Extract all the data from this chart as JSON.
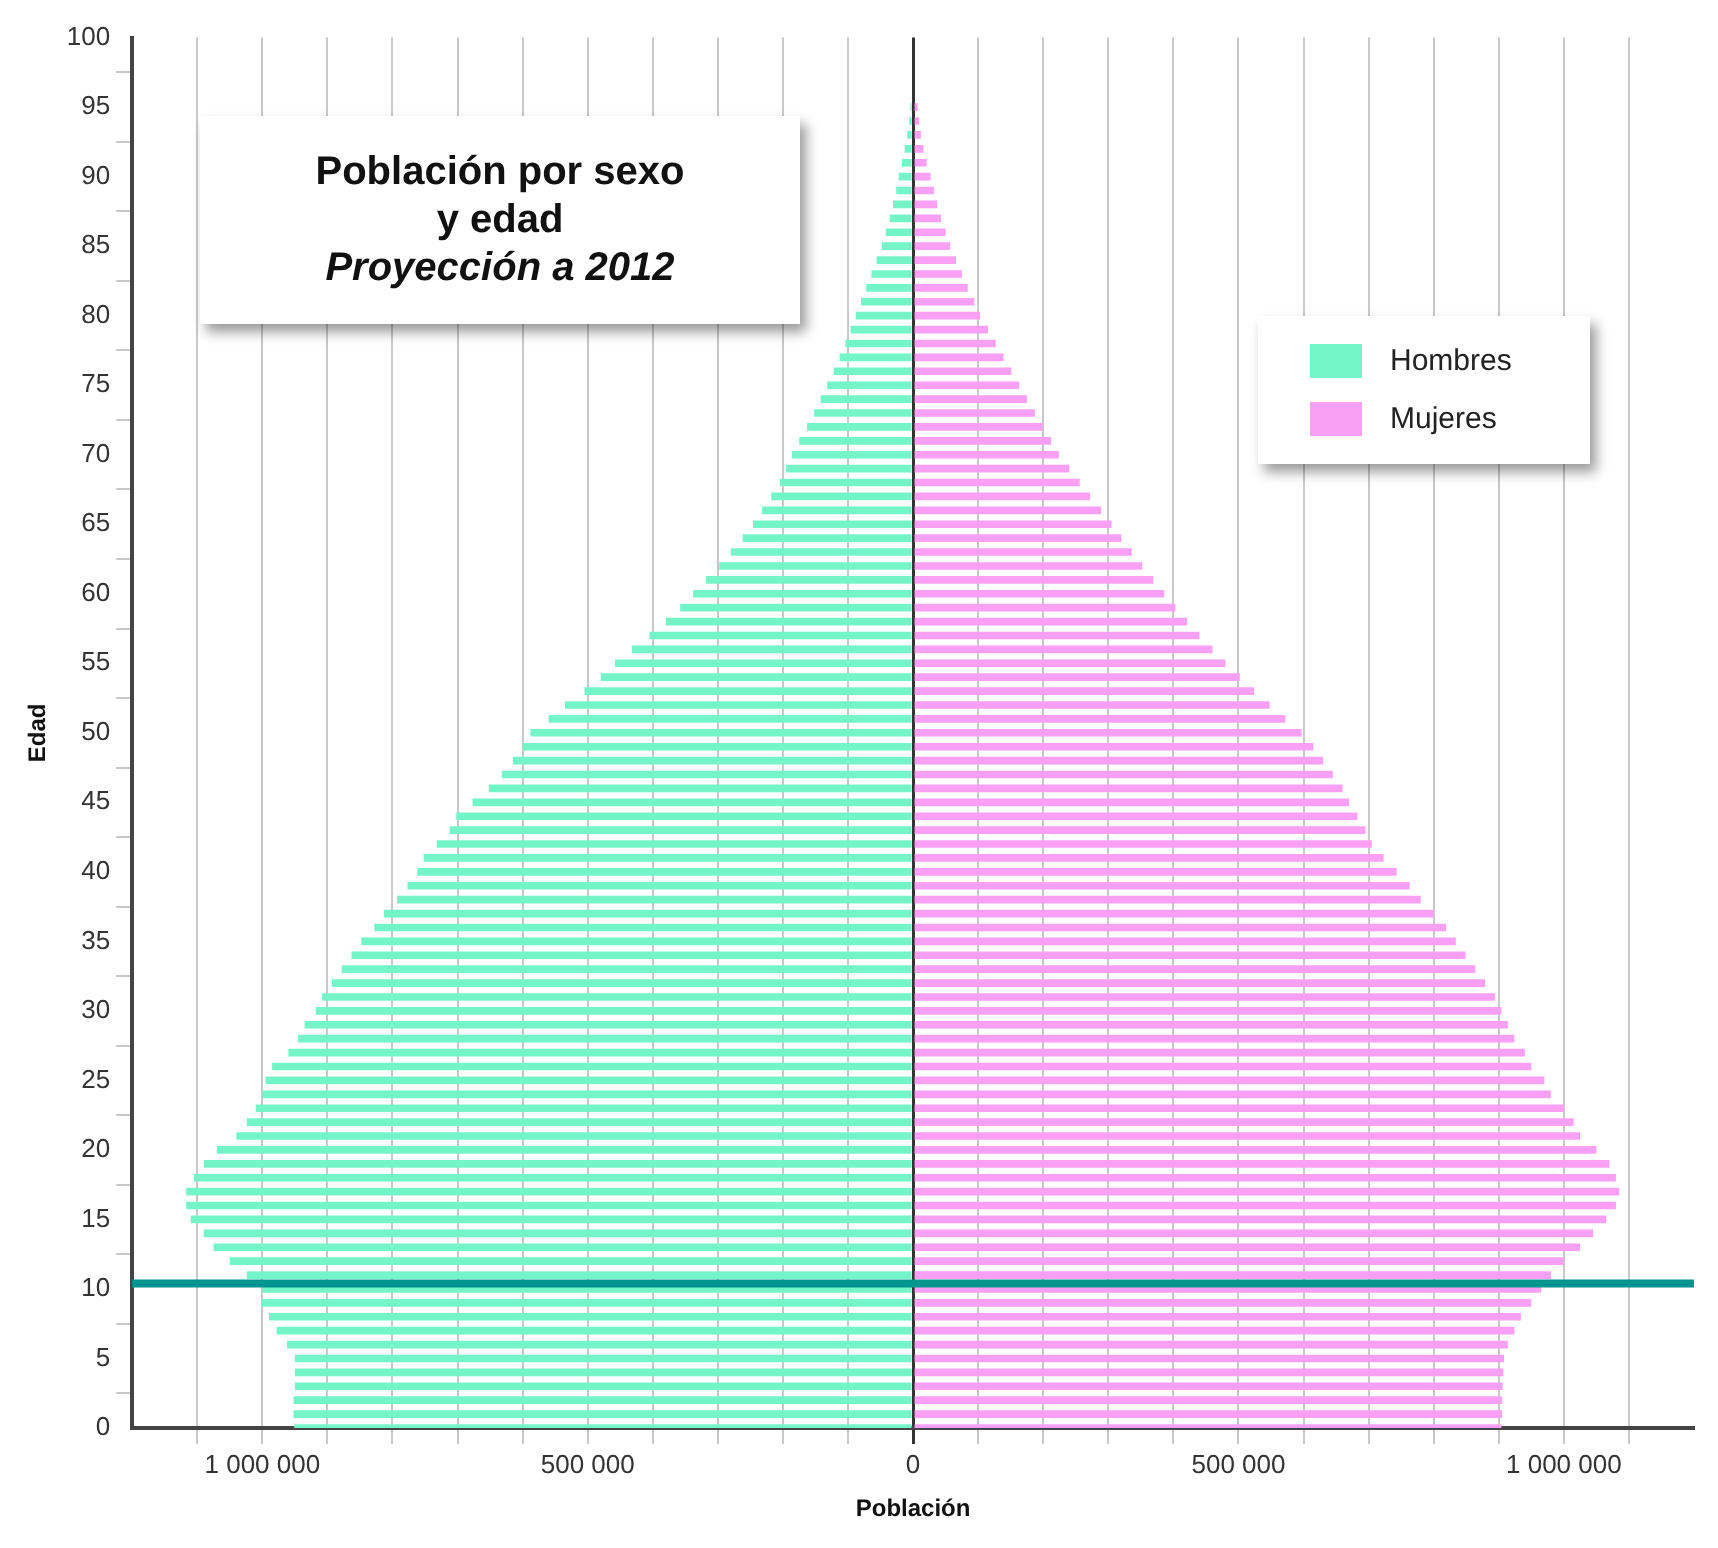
{
  "chart_data": {
    "type": "bar",
    "orientation": "horizontal",
    "title": "Población por sexo y edad",
    "subtitle": "Proyección a 2012",
    "xlabel": "Población",
    "ylabel": "Edad",
    "x": [
      0,
      1,
      2,
      3,
      4,
      5,
      6,
      7,
      8,
      9,
      10,
      11,
      12,
      13,
      14,
      15,
      16,
      17,
      18,
      19,
      20,
      21,
      22,
      23,
      24,
      25,
      26,
      27,
      28,
      29,
      30,
      31,
      32,
      33,
      34,
      35,
      36,
      37,
      38,
      39,
      40,
      41,
      42,
      43,
      44,
      45,
      46,
      47,
      48,
      49,
      50,
      51,
      52,
      53,
      54,
      55,
      56,
      57,
      58,
      59,
      60,
      61,
      62,
      63,
      64,
      65,
      66,
      67,
      68,
      69,
      70,
      71,
      72,
      73,
      74,
      75,
      76,
      77,
      78,
      79,
      80,
      81,
      82,
      83,
      84,
      85,
      86,
      87,
      88,
      89,
      90,
      91,
      92,
      93,
      94,
      95
    ],
    "series": [
      {
        "name": "Hombres",
        "color": "#74f5c8",
        "values": [
          -951000,
          -952000,
          -952000,
          -950000,
          -950000,
          -950000,
          -962000,
          -978000,
          -990000,
          -1002000,
          -1000000,
          -1024000,
          -1050000,
          -1075000,
          -1090000,
          -1110000,
          -1117000,
          -1117000,
          -1105000,
          -1090000,
          -1070000,
          -1040000,
          -1024000,
          -1010000,
          -1000000,
          -995000,
          -985000,
          -960000,
          -945000,
          -935000,
          -918000,
          -908000,
          -893000,
          -878000,
          -863000,
          -848000,
          -828000,
          -813000,
          -793000,
          -777000,
          -762000,
          -752000,
          -732000,
          -712000,
          -702000,
          -677000,
          -652000,
          -632000,
          -615000,
          -600000,
          -588000,
          -560000,
          -535000,
          -505000,
          -480000,
          -458000,
          -432000,
          -405000,
          -380000,
          -358000,
          -338000,
          -318000,
          -298000,
          -280000,
          -262000,
          -246000,
          -232000,
          -218000,
          -205000,
          -195000,
          -186000,
          -175000,
          -163000,
          -152000,
          -142000,
          -132000,
          -122000,
          -113000,
          -104000,
          -96000,
          -88000,
          -80000,
          -72000,
          -64000,
          -56000,
          -48000,
          -42000,
          -36000,
          -31000,
          -26000,
          -22000,
          -17000,
          -13000,
          -9000,
          -6000,
          -4000
        ]
      },
      {
        "name": "Mujeres",
        "color": "#f9a0f5",
        "values": [
          904000,
          905000,
          905000,
          906000,
          907000,
          908000,
          914000,
          924000,
          934000,
          950000,
          965000,
          980000,
          1000000,
          1025000,
          1045000,
          1065000,
          1080000,
          1085000,
          1080000,
          1070000,
          1050000,
          1025000,
          1015000,
          1000000,
          980000,
          970000,
          950000,
          940000,
          924000,
          914000,
          904000,
          894000,
          879000,
          864000,
          849000,
          834000,
          819000,
          800000,
          780000,
          763000,
          743000,
          723000,
          705000,
          695000,
          683000,
          670000,
          660000,
          645000,
          630000,
          615000,
          597000,
          572000,
          548000,
          524000,
          502000,
          480000,
          460000,
          440000,
          421000,
          403000,
          386000,
          369000,
          352000,
          336000,
          320000,
          305000,
          289000,
          272000,
          256000,
          240000,
          224000,
          212000,
          199000,
          187000,
          175000,
          163000,
          151000,
          139000,
          127000,
          115000,
          103000,
          94000,
          84000,
          75000,
          66000,
          57000,
          50000,
          43000,
          37000,
          32000,
          27000,
          21000,
          16000,
          12000,
          9000,
          7000
        ]
      }
    ],
    "xlim": [
      -1200000,
      1200000
    ],
    "xticks": [
      {
        "value": -1100000,
        "label": null
      },
      {
        "value": -1000000,
        "label": "1 000 000"
      },
      {
        "value": -900000,
        "label": null
      },
      {
        "value": -800000,
        "label": null
      },
      {
        "value": -700000,
        "label": null
      },
      {
        "value": -600000,
        "label": null
      },
      {
        "value": -500000,
        "label": "500 000"
      },
      {
        "value": -400000,
        "label": null
      },
      {
        "value": -300000,
        "label": null
      },
      {
        "value": -200000,
        "label": null
      },
      {
        "value": -100000,
        "label": null
      },
      0,
      {
        "value": 100000,
        "label": null
      },
      {
        "value": 200000,
        "label": null
      },
      {
        "value": 300000,
        "label": null
      },
      {
        "value": 400000,
        "label": null
      },
      {
        "value": 500000,
        "label": "500 000"
      },
      {
        "value": 600000,
        "label": null
      },
      {
        "value": 700000,
        "label": null
      },
      {
        "value": 800000,
        "label": null
      },
      {
        "value": 900000,
        "label": null
      },
      {
        "value": 1000000,
        "label": "1 000 000"
      },
      {
        "value": 1100000,
        "label": null
      }
    ],
    "ylim": [
      0,
      100
    ],
    "yticks": [
      0,
      5,
      10,
      15,
      20,
      25,
      30,
      35,
      40,
      45,
      50,
      55,
      60,
      65,
      70,
      75,
      80,
      85,
      90,
      95,
      100
    ],
    "ref_lines": [
      {
        "axis": "y",
        "value": 10.4,
        "color": "#00968f"
      }
    ],
    "grid": "x",
    "legend": "top right",
    "stacked": true
  }
}
